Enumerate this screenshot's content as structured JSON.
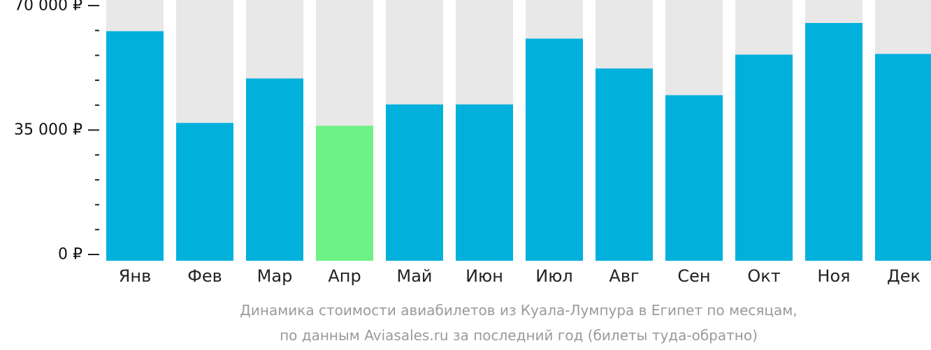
{
  "chart_data": {
    "type": "bar",
    "categories": [
      "Янв",
      "Фев",
      "Мар",
      "Апр",
      "Май",
      "Июн",
      "Июл",
      "Авг",
      "Сен",
      "Окт",
      "Ноя",
      "Дек"
    ],
    "values": [
      62800,
      37000,
      49500,
      36200,
      42200,
      42200,
      60700,
      52300,
      44800,
      56200,
      65100,
      56400
    ],
    "highlight_index": 3,
    "ylim": [
      0,
      70000
    ],
    "yticks": [
      {
        "value": 0,
        "label": "0 ₽"
      },
      {
        "value": 35000,
        "label": "35 000 ₽"
      },
      {
        "value": 70000,
        "label": "70 000 ₽"
      }
    ],
    "minor_tick_step": 7000,
    "colors": {
      "bar": "#02b0dc",
      "highlight": "#6ef187",
      "background_bar": "#e8e8e8",
      "axis": "#222222"
    },
    "caption_lines": [
      "Динамика стоимости авиабилетов из Куала-Лумпура в Египет по месяцам,",
      "по данным Aviasales.ru за последний год (билеты туда-обратно)"
    ]
  }
}
